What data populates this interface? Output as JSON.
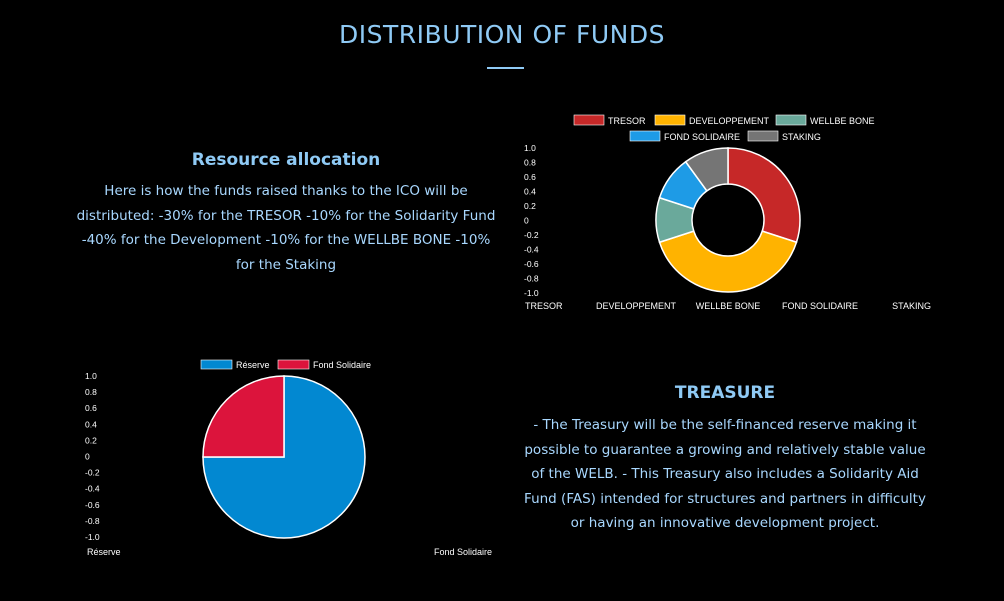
{
  "page": {
    "title": "DISTRIBUTION OF FUNDS"
  },
  "allocation": {
    "heading": "Resource allocation",
    "text": "Here is how the funds raised thanks to the ICO will be distributed: -30% for the TRESOR -10% for the Solidarity Fund -40% for the Development -10% for the WELLBE BONE -10% for the Staking"
  },
  "treasure": {
    "heading": "TREASURE",
    "text": "- The Treasury will be the self-financed reserve making it possible to guarantee a growing and relatively stable value of the WELB. - This Treasury also includes a Solidarity Aid Fund (FAS) intended for structures and partners in difficulty or having an innovative development project."
  },
  "chart_data": [
    {
      "type": "doughnut",
      "categories": [
        "TRESOR",
        "DEVELOPPEMENT",
        "WELLBE BONE",
        "FOND SOLIDAIRE",
        "STAKING"
      ],
      "values": [
        30,
        40,
        10,
        10,
        10
      ],
      "colors": [
        "#c62828",
        "#ffb300",
        "#6aa99b",
        "#1e9be6",
        "#757575"
      ],
      "yticks": [
        "1.0",
        "0.8",
        "0.6",
        "0.4",
        "0.2",
        "0",
        "-0.2",
        "-0.4",
        "-0.6",
        "-0.8",
        "-1.0"
      ],
      "ylim": [
        -1.0,
        1.0
      ],
      "legend": "top"
    },
    {
      "type": "pie",
      "categories": [
        "Réserve",
        "Fond Solidaire"
      ],
      "values": [
        75,
        25
      ],
      "colors": [
        "#0288d1",
        "#dc143c"
      ],
      "yticks": [
        "1.0",
        "0.8",
        "0.6",
        "0.4",
        "0.2",
        "0",
        "-0.2",
        "-0.4",
        "-0.6",
        "-0.8",
        "-1.0"
      ],
      "ylim": [
        -1.0,
        1.0
      ],
      "legend": "top"
    }
  ]
}
